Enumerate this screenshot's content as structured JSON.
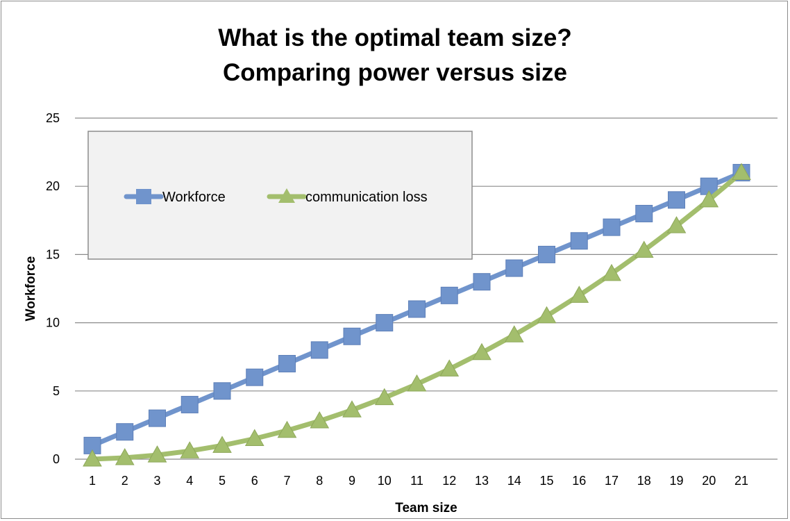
{
  "chart_data": {
    "type": "line",
    "title_line1": "What is the optimal team size?",
    "title_line2": "Comparing power versus size",
    "xlabel": "Team size",
    "ylabel": "Workforce",
    "categories": [
      "1",
      "2",
      "3",
      "4",
      "5",
      "6",
      "7",
      "8",
      "9",
      "10",
      "11",
      "12",
      "13",
      "14",
      "15",
      "16",
      "17",
      "18",
      "19",
      "20",
      "21"
    ],
    "ylim": [
      0,
      25
    ],
    "yticks": [
      "0",
      "5",
      "10",
      "15",
      "20",
      "25"
    ],
    "grid": true,
    "legend_position": "top-left",
    "series": [
      {
        "name": "Workforce",
        "color": "#7094cc",
        "marker": "square",
        "values": [
          1,
          2,
          3,
          4,
          5,
          6,
          7,
          8,
          9,
          10,
          11,
          12,
          13,
          14,
          15,
          16,
          17,
          18,
          19,
          20,
          21
        ]
      },
      {
        "name": "communication loss",
        "color": "#a3be6d",
        "marker": "triangle",
        "values": [
          0,
          0.1,
          0.3,
          0.6,
          1.0,
          1.5,
          2.1,
          2.8,
          3.6,
          4.5,
          5.5,
          6.6,
          7.8,
          9.1,
          10.5,
          12.0,
          13.6,
          15.3,
          17.1,
          19.0,
          21.0
        ]
      }
    ]
  }
}
